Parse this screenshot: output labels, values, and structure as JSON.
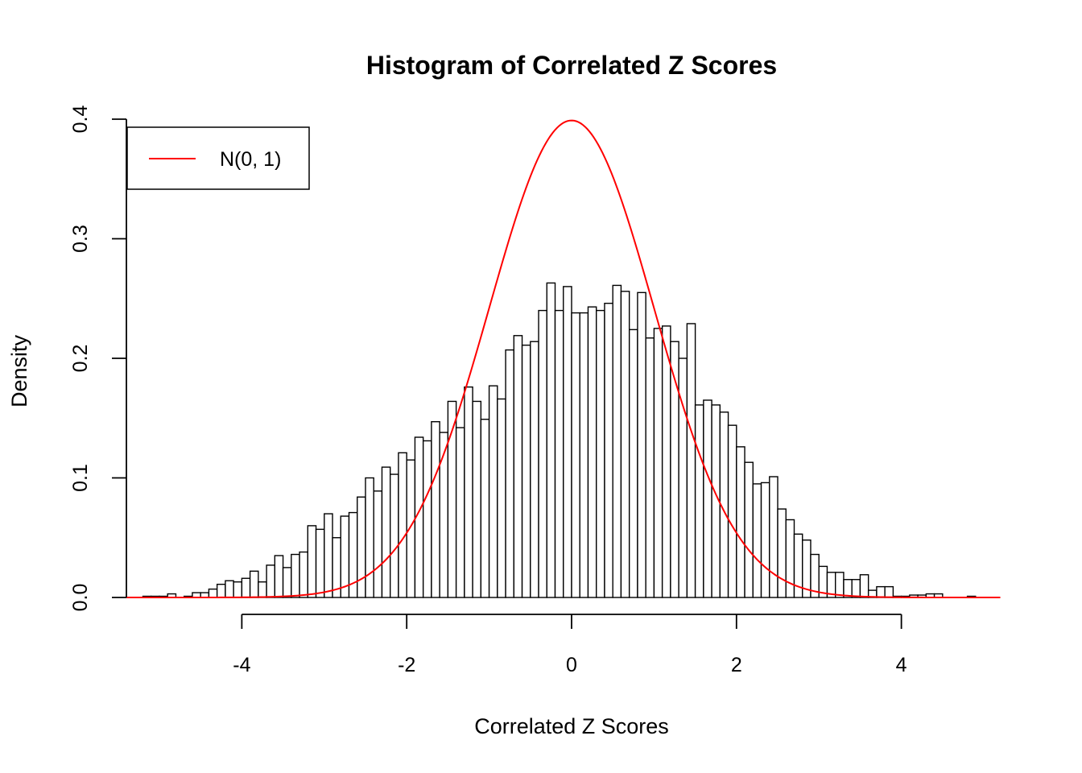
{
  "chart_data": {
    "type": "histogram",
    "title": "Histogram of Correlated Z Scores",
    "xlabel": "Correlated Z Scores",
    "ylabel": "Density",
    "xlim": [
      -5.4,
      5.4
    ],
    "ylim": [
      0,
      0.4
    ],
    "x_ticks": [
      -4,
      -2,
      0,
      2,
      4
    ],
    "y_ticks": [
      0.0,
      0.1,
      0.2,
      0.3,
      0.4
    ],
    "x_tick_labels": [
      "-4",
      "-2",
      "0",
      "2",
      "4"
    ],
    "y_tick_labels": [
      "0.0",
      "0.1",
      "0.2",
      "0.3",
      "0.4"
    ],
    "grid": false,
    "bin_start": -5.2,
    "bin_width": 0.1,
    "values": [
      0.001,
      0.001,
      0.001,
      0.003,
      0.0,
      0.001,
      0.004,
      0.004,
      0.007,
      0.011,
      0.014,
      0.013,
      0.016,
      0.022,
      0.013,
      0.027,
      0.035,
      0.025,
      0.036,
      0.038,
      0.06,
      0.057,
      0.07,
      0.05,
      0.068,
      0.071,
      0.084,
      0.1,
      0.089,
      0.109,
      0.103,
      0.121,
      0.115,
      0.134,
      0.131,
      0.147,
      0.138,
      0.164,
      0.142,
      0.176,
      0.164,
      0.149,
      0.177,
      0.166,
      0.207,
      0.219,
      0.211,
      0.214,
      0.24,
      0.263,
      0.24,
      0.26,
      0.238,
      0.238,
      0.243,
      0.24,
      0.246,
      0.261,
      0.256,
      0.224,
      0.255,
      0.217,
      0.225,
      0.227,
      0.214,
      0.2,
      0.229,
      0.161,
      0.165,
      0.161,
      0.155,
      0.144,
      0.126,
      0.113,
      0.095,
      0.096,
      0.101,
      0.074,
      0.065,
      0.053,
      0.048,
      0.036,
      0.026,
      0.021,
      0.021,
      0.015,
      0.015,
      0.019,
      0.006,
      0.009,
      0.009,
      0.001,
      0.001,
      0.002,
      0.002,
      0.003,
      0.003,
      0.0,
      0.0,
      0.0,
      0.001
    ],
    "series": [
      {
        "name": "N(0, 1)",
        "type": "line",
        "function": "normal_pdf",
        "mean": 0,
        "sd": 1,
        "x_range": [
          -5.4,
          5.2
        ],
        "color": "#ff0000"
      }
    ],
    "legend": {
      "position": "top-left",
      "entries": [
        "N(0, 1)"
      ]
    },
    "colors": {
      "bars_fill": "#ffffff",
      "bars_stroke": "#000000",
      "curve": "#ff0000"
    }
  }
}
